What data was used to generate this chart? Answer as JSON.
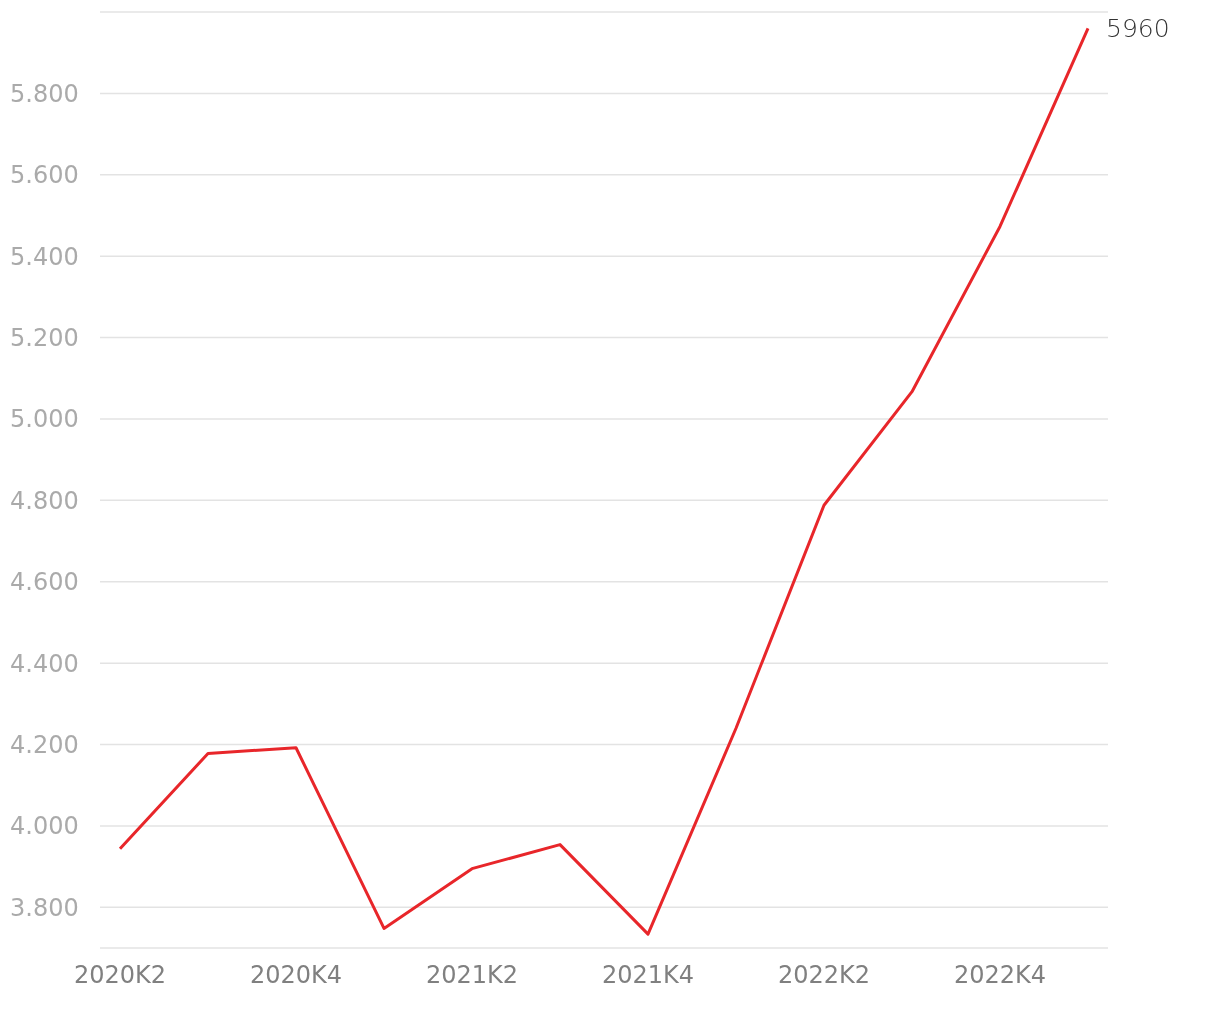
{
  "chart_data": {
    "type": "line",
    "categories": [
      "2020K2",
      null,
      "2020K4",
      null,
      "2021K2",
      null,
      "2021K4",
      null,
      "2022K2",
      null,
      "2022K4",
      null
    ],
    "series": [
      {
        "color": "#e8262a",
        "values": [
          3944,
          4178,
          4192,
          3748,
          3895,
          3954,
          3734,
          4240,
          4788,
          5067,
          5473,
          5960
        ],
        "value_labels": [
          null,
          null,
          null,
          null,
          null,
          null,
          null,
          null,
          null,
          null,
          null,
          "5960"
        ]
      }
    ],
    "ylim": [
      3700,
      6000
    ],
    "yticks": [
      {
        "value": 3800,
        "label": "3.800"
      },
      {
        "value": 4000,
        "label": "4.000"
      },
      {
        "value": 4200,
        "label": "4.200"
      },
      {
        "value": 4400,
        "label": "4.400"
      },
      {
        "value": 4600,
        "label": "4.600"
      },
      {
        "value": 4800,
        "label": "4.800"
      },
      {
        "value": 5000,
        "label": "5.000"
      },
      {
        "value": 5200,
        "label": "5.200"
      },
      {
        "value": 5400,
        "label": "5.400"
      },
      {
        "value": 5600,
        "label": "5.600"
      },
      {
        "value": 5800,
        "label": "5.800"
      }
    ],
    "grid": "y",
    "marker": "none",
    "line_style": "solid",
    "legend": false
  }
}
